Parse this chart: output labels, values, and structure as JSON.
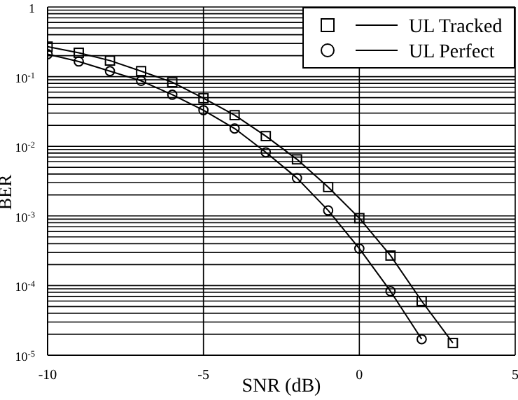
{
  "chart_data": {
    "type": "line",
    "xlabel": "SNR (dB)",
    "ylabel": "BER",
    "log": "y",
    "grid": true,
    "legend": "top right",
    "line_style": "solid",
    "x": [
      -10,
      -9,
      -8,
      -7,
      -6,
      -5,
      -4,
      -3,
      -2,
      -1,
      0,
      1,
      2,
      3
    ],
    "xlim": [
      -10,
      5
    ],
    "xticks": [
      -10,
      -5,
      0,
      5
    ],
    "ylim": [
      1e-05,
      1
    ],
    "yticks": [
      {
        "value": 1e-05,
        "label": "10$^{-5}$"
      },
      {
        "value": 0.0001,
        "label": "10$^{-4}$"
      },
      {
        "value": 0.001,
        "label": "10$^{-3}$"
      },
      {
        "value": 0.01,
        "label": "10$^{-2}$"
      },
      {
        "value": 0.1,
        "label": "10$^{-1}$"
      },
      1
    ],
    "series": [
      {
        "name": "UL Tracked",
        "color": "#000000",
        "marker": "square",
        "values": [
          0.27,
          0.22,
          0.17,
          0.12,
          0.083,
          0.049,
          0.028,
          0.014,
          0.0065,
          0.0026,
          0.00093,
          0.00027,
          6e-05,
          1.5e-05
        ]
      },
      {
        "name": "UL Perfect",
        "color": "#000000",
        "marker": "circle",
        "values": [
          0.21,
          0.165,
          0.12,
          0.087,
          0.055,
          0.033,
          0.018,
          0.0082,
          0.0035,
          0.0012,
          0.00034,
          8.3e-05,
          1.7e-05,
          null
        ]
      }
    ]
  }
}
